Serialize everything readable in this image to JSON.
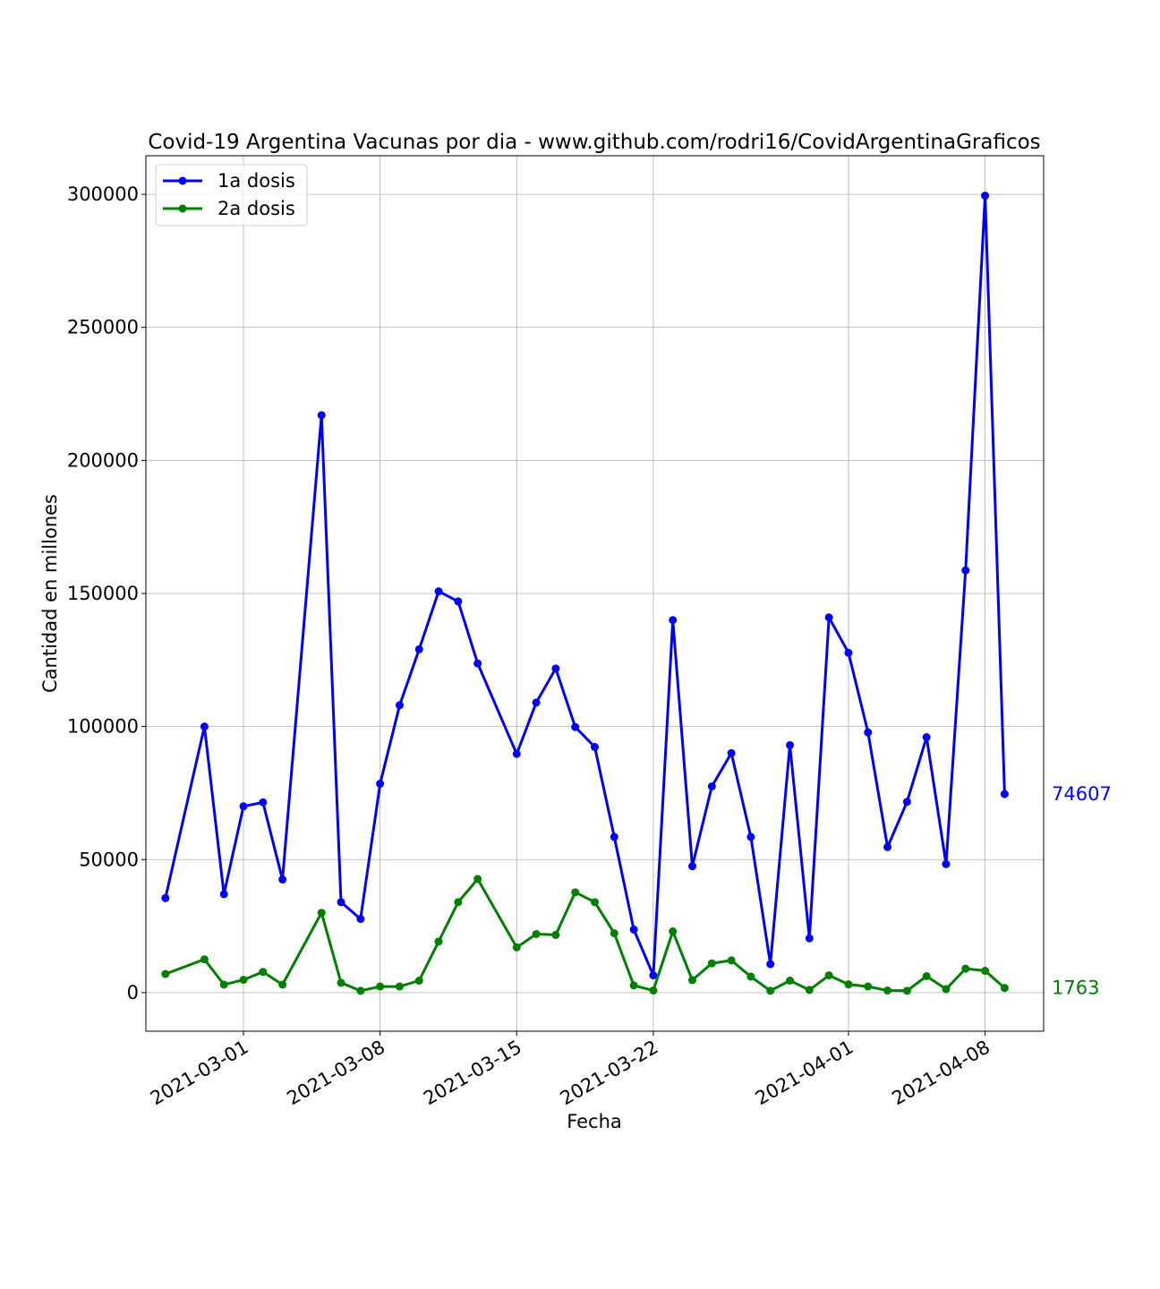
{
  "chart_data": {
    "type": "line",
    "title": "Covid-19 Argentina Vacunas por dia - www.github.com/rodri16/CovidArgentinaGraficos",
    "xlabel": "Fecha",
    "ylabel": "Cantidad en millones",
    "ylim": [
      -14500,
      314500
    ],
    "xlim": [
      "2021-02-24",
      "2021-04-11"
    ],
    "yticks": [
      0,
      50000,
      100000,
      150000,
      200000,
      250000,
      300000
    ],
    "xticks": [
      "2021-03-01",
      "2021-03-08",
      "2021-03-15",
      "2021-03-22",
      "2021-04-01",
      "2021-04-08"
    ],
    "grid": true,
    "legend_position": "top-left",
    "x": [
      "2021-02-25",
      "2021-02-27",
      "2021-02-28",
      "2021-03-01",
      "2021-03-02",
      "2021-03-03",
      "2021-03-05",
      "2021-03-06",
      "2021-03-07",
      "2021-03-08",
      "2021-03-09",
      "2021-03-10",
      "2021-03-11",
      "2021-03-12",
      "2021-03-13",
      "2021-03-15",
      "2021-03-16",
      "2021-03-17",
      "2021-03-18",
      "2021-03-19",
      "2021-03-20",
      "2021-03-21",
      "2021-03-22",
      "2021-03-23",
      "2021-03-24",
      "2021-03-25",
      "2021-03-26",
      "2021-03-27",
      "2021-03-28",
      "2021-03-29",
      "2021-03-30",
      "2021-03-31",
      "2021-04-01",
      "2021-04-02",
      "2021-04-03",
      "2021-04-04",
      "2021-04-05",
      "2021-04-06",
      "2021-04-07",
      "2021-04-08",
      "2021-04-09"
    ],
    "series": [
      {
        "name": "1a dosis",
        "color": "#0000ff",
        "values": [
          35500,
          100000,
          37000,
          70000,
          71500,
          42500,
          217000,
          34000,
          27700,
          78500,
          108000,
          129000,
          150800,
          147000,
          123700,
          89700,
          109000,
          121800,
          99800,
          92300,
          58500,
          23700,
          6500,
          140000,
          47500,
          77500,
          90000,
          58500,
          10700,
          93000,
          20400,
          141000,
          127700,
          97800,
          54700,
          71700,
          96000,
          48300,
          158700,
          299500,
          74607
        ]
      },
      {
        "name": "2a dosis",
        "color": "#008000",
        "values": [
          7000,
          12500,
          3000,
          4800,
          7800,
          3000,
          30000,
          3700,
          700,
          2300,
          2300,
          4500,
          19200,
          34000,
          42700,
          17000,
          22000,
          21700,
          37700,
          34000,
          22300,
          2700,
          800,
          23000,
          4700,
          11000,
          12100,
          6000,
          700,
          4500,
          1000,
          6500,
          3100,
          2300,
          800,
          700,
          6200,
          1300,
          9000,
          8200,
          1763
        ]
      }
    ],
    "end_labels": [
      "74607",
      "1763"
    ]
  }
}
